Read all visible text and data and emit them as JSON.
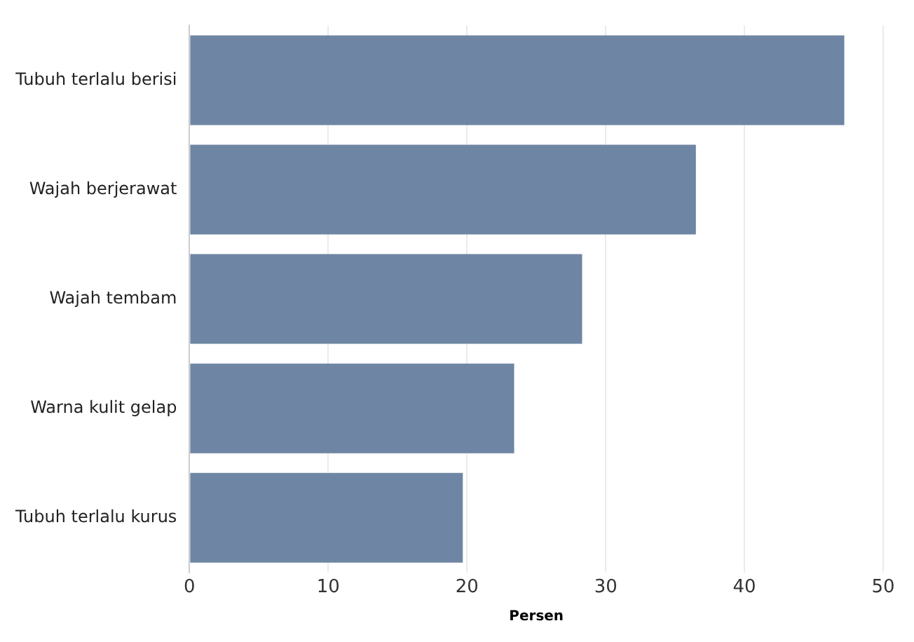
{
  "chart_data": {
    "type": "bar",
    "orientation": "horizontal",
    "xlabel": "Persen",
    "categories": [
      "Tubuh terlalu berisi",
      "Wajah berjerawat",
      "Wajah tembam",
      "Warna kulit gelap",
      "Tubuh terlalu kurus"
    ],
    "values": [
      47.2,
      36.5,
      28.3,
      23.4,
      19.7
    ],
    "color": "#6e86a3",
    "xlim": [
      0,
      50
    ],
    "xticks": [
      0,
      10,
      20,
      30,
      40,
      50
    ],
    "grid": "x"
  }
}
